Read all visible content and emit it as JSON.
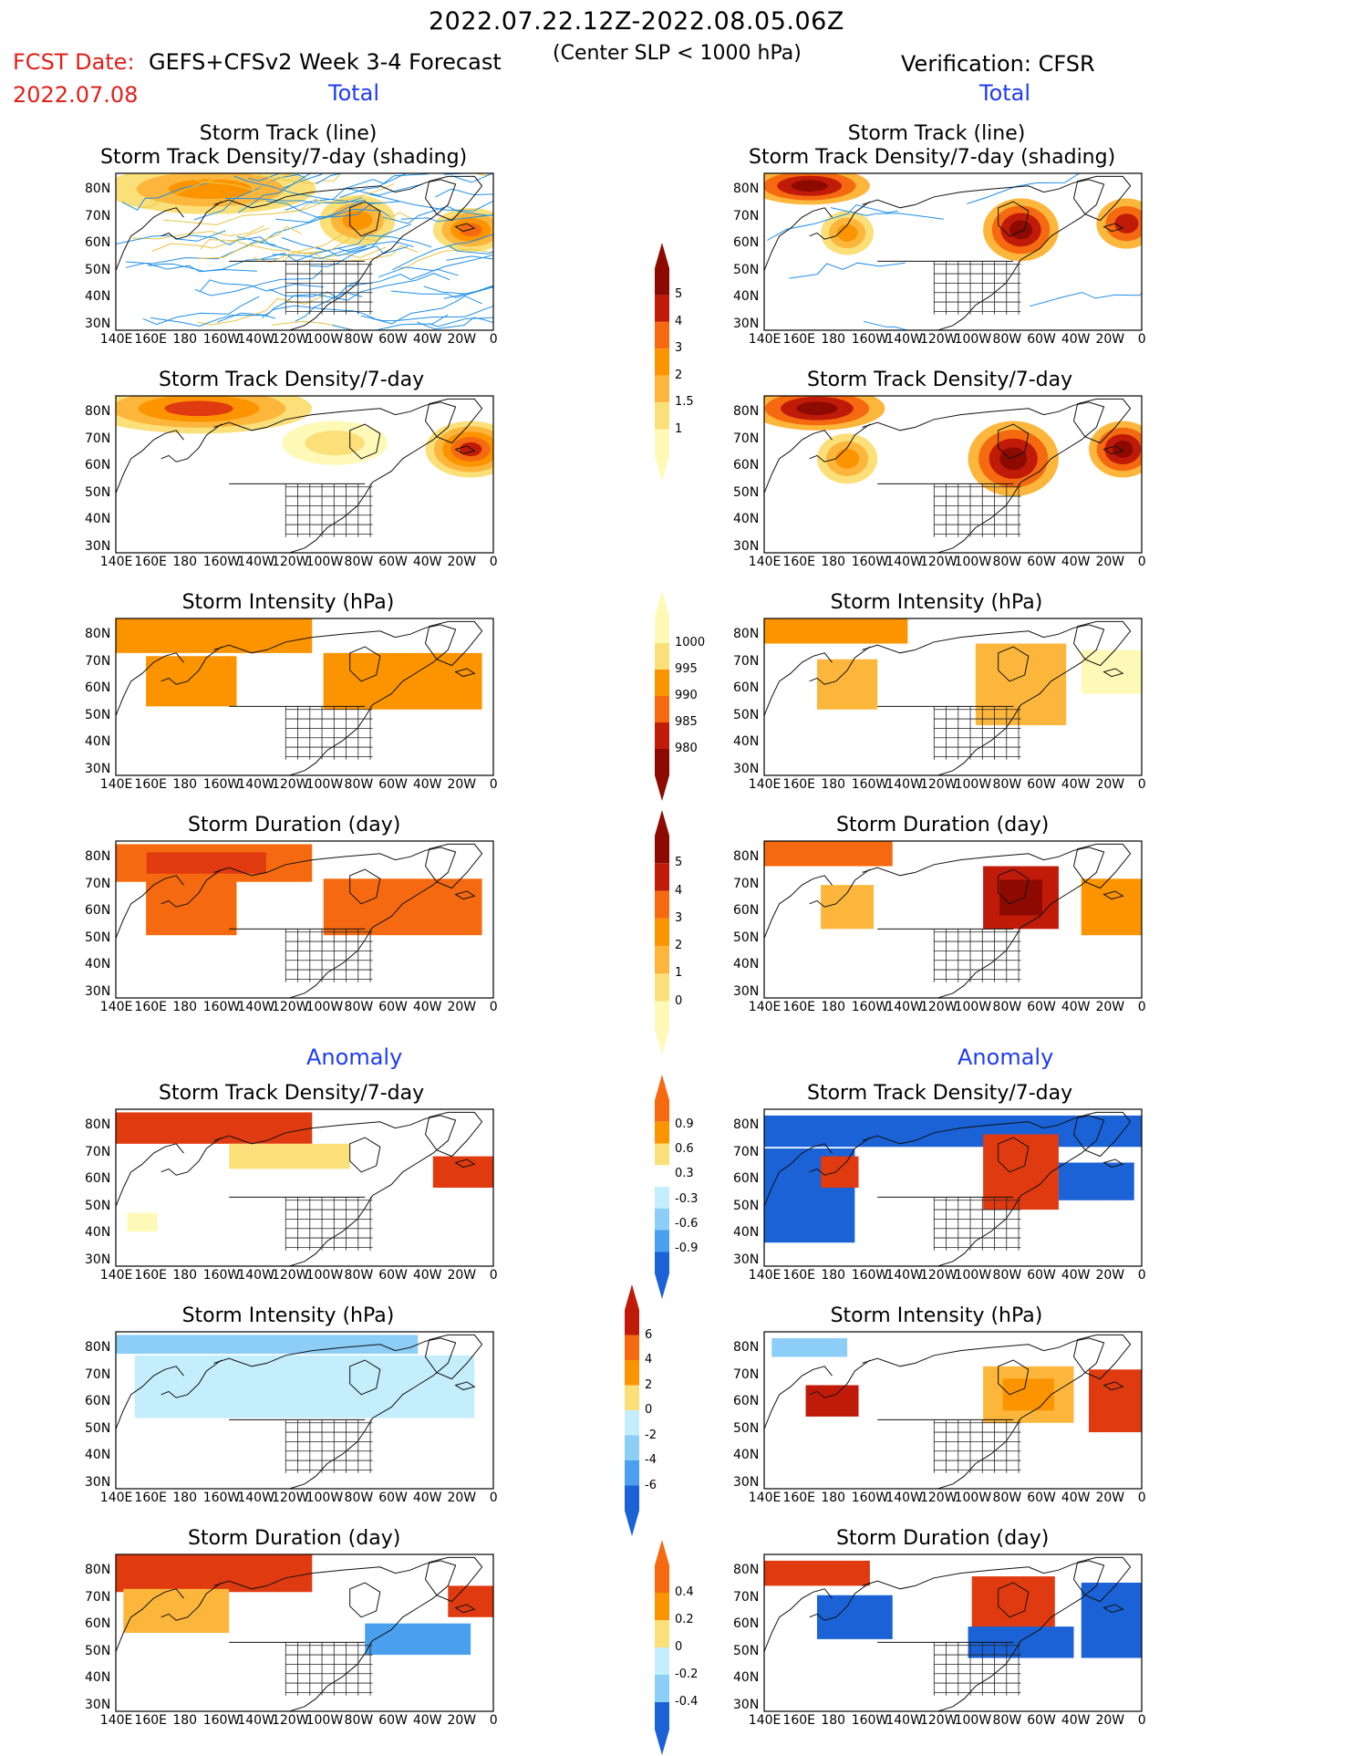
{
  "header": {
    "date_range": "2022.07.22.12Z-2022.08.05.06Z",
    "fcst_label": "FCST Date:",
    "fcst_date": "2022.07.08",
    "forecast_title": "GEFS+CFSv2 Week 3-4 Forecast",
    "center_criteria": "(Center SLP < 1000 hPa)",
    "verification": "Verification: CFSR"
  },
  "sections": {
    "total_left": "Total",
    "total_right": "Total",
    "anomaly_left": "Anomaly",
    "anomaly_right": "Anomaly"
  },
  "panel_titles": {
    "track_line": "Storm Track (line)",
    "track_density_shading": "Storm Track Density/7-day (shading)",
    "track_density": "Storm Track Density/7-day",
    "intensity": "Storm Intensity (hPa)",
    "duration": "Storm Duration (day)"
  },
  "axes": {
    "lat_labels": [
      "80N",
      "70N",
      "60N",
      "50N",
      "40N",
      "30N"
    ],
    "lon_labels": [
      "140E",
      "160E",
      "180",
      "160W",
      "140W",
      "120W",
      "100W",
      "80W",
      "60W",
      "40W",
      "20W",
      "0"
    ]
  },
  "colorbars": {
    "density_total": [
      "1",
      "1.5",
      "2",
      "3",
      "4",
      "5"
    ],
    "intensity_total": [
      "1000",
      "995",
      "990",
      "985",
      "980"
    ],
    "duration_total": [
      "0",
      "1",
      "2",
      "3",
      "4",
      "5"
    ],
    "density_anom": [
      "0.9",
      "0.6",
      "0.3",
      "-0.3",
      "-0.6",
      "-0.9"
    ],
    "intensity_anom": [
      "6",
      "4",
      "2",
      "0",
      "-2",
      "-4",
      "-6"
    ],
    "duration_anom": [
      "0.4",
      "0.2",
      "0",
      "-0.2",
      "-0.4"
    ]
  },
  "colors": {
    "warm": [
      "#fff9b8",
      "#fbe07a",
      "#fdb63c",
      "#fc9400",
      "#f56a10",
      "#e03a10",
      "#c01a08",
      "#8c0a00"
    ],
    "cool": [
      "#c4eefc",
      "#8ccef6",
      "#4aa0ee",
      "#1a62d6"
    ],
    "title_red": "#e0201a",
    "section_blue": "#1f3cf0",
    "track_blue": "#1f8fe6",
    "track_gold": "#e8c447"
  }
}
